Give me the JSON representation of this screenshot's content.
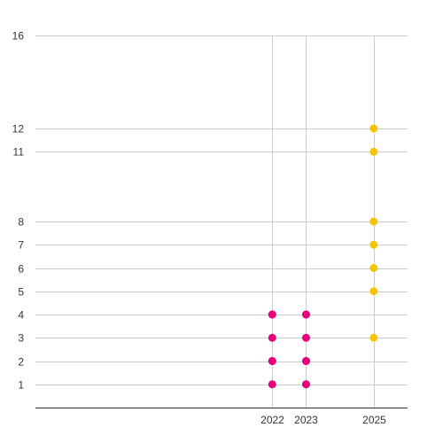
{
  "chart_data": {
    "type": "scatter",
    "title": "",
    "xlabel": "",
    "ylabel": "",
    "xlim": [
      2015,
      2026
    ],
    "ylim": [
      0,
      16
    ],
    "grid": true,
    "legend": "none",
    "x_ticks": [
      2022,
      2023,
      2025
    ],
    "y_ticks": [
      1,
      2,
      3,
      4,
      5,
      6,
      7,
      8,
      11,
      12,
      16
    ],
    "series": [
      {
        "color": "#e6007e",
        "points": [
          {
            "x": 2022,
            "y": 1
          },
          {
            "x": 2022,
            "y": 2
          },
          {
            "x": 2022,
            "y": 2
          },
          {
            "x": 2022,
            "y": 3
          },
          {
            "x": 2022,
            "y": 4
          },
          {
            "x": 2022,
            "y": 4
          },
          {
            "x": 2023,
            "y": 1
          },
          {
            "x": 2023,
            "y": 1
          },
          {
            "x": 2023,
            "y": 2
          },
          {
            "x": 2023,
            "y": 2
          },
          {
            "x": 2023,
            "y": 3
          },
          {
            "x": 2023,
            "y": 4
          },
          {
            "x": 2023,
            "y": 4
          }
        ]
      },
      {
        "color": "#f5c400",
        "points": [
          {
            "x": 2025,
            "y": 3
          },
          {
            "x": 2025,
            "y": 5
          },
          {
            "x": 2025,
            "y": 6
          },
          {
            "x": 2025,
            "y": 7
          },
          {
            "x": 2025,
            "y": 8
          },
          {
            "x": 2025,
            "y": 11
          },
          {
            "x": 2025,
            "y": 12
          }
        ]
      }
    ]
  }
}
